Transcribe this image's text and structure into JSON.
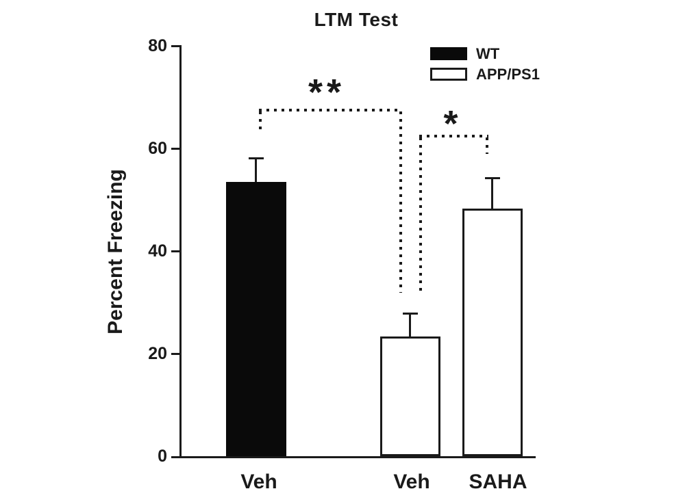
{
  "chart_data": {
    "type": "bar",
    "title": "LTM Test",
    "ylabel": "Percent Freezing",
    "xlabel": "",
    "ylim": [
      0,
      80
    ],
    "yticks": [
      0,
      20,
      40,
      60,
      80
    ],
    "categories": [
      "Veh",
      "Veh",
      "SAHA"
    ],
    "bars": [
      {
        "category": "Veh",
        "series": "WT",
        "value": 53.5,
        "error_plus": 4.8,
        "fill": "black"
      },
      {
        "category": "Veh",
        "series": "APP/PS1",
        "value": 23.3,
        "error_plus": 4.7,
        "fill": "white"
      },
      {
        "category": "SAHA",
        "series": "APP/PS1",
        "value": 48.3,
        "error_plus": 6.1,
        "fill": "white"
      }
    ],
    "legend": {
      "position": "top-right",
      "entries": [
        {
          "label": "WT",
          "fill": "black"
        },
        {
          "label": "APP/PS1",
          "fill": "white"
        }
      ]
    },
    "significance": [
      {
        "label": "**",
        "between": [
          "WT Veh",
          "APP/PS1 Veh"
        ],
        "line_style": "dotted"
      },
      {
        "label": "*",
        "between": [
          "APP/PS1 Veh",
          "APP/PS1 SAHA"
        ],
        "line_style": "dotted"
      }
    ],
    "grid": false,
    "error_bars": "upper-only-with-caps"
  },
  "colors": {
    "ink": "#1a1a1a",
    "bar_black": "#0a0a0a",
    "bar_white": "#ffffff",
    "background": "#ffffff"
  }
}
